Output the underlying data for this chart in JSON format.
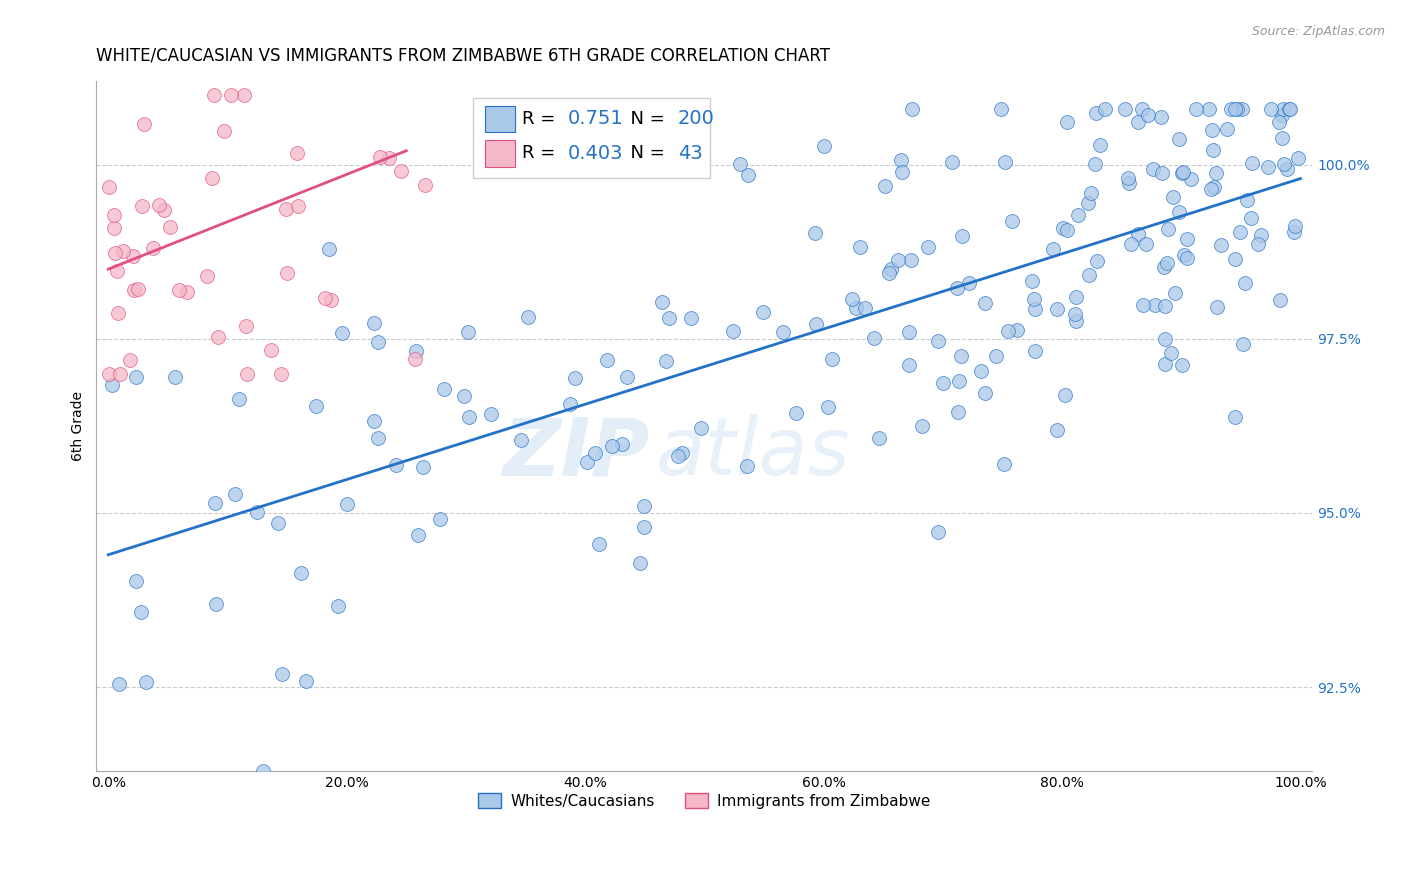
{
  "title": "WHITE/CAUCASIAN VS IMMIGRANTS FROM ZIMBABWE 6TH GRADE CORRELATION CHART",
  "source": "Source: ZipAtlas.com",
  "ylabel": "6th Grade",
  "y_ticks": [
    92.5,
    95.0,
    97.5,
    100.0
  ],
  "y_tick_labels": [
    "92.5%",
    "95.0%",
    "97.5%",
    "100.0%"
  ],
  "x_ticks": [
    0.0,
    20.0,
    40.0,
    60.0,
    80.0,
    100.0
  ],
  "x_tick_labels": [
    "0.0%",
    "20.0%",
    "40.0%",
    "60.0%",
    "80.0%",
    "100.0%"
  ],
  "xlim": [
    -1.0,
    101.0
  ],
  "ylim": [
    91.3,
    101.2
  ],
  "blue_R": 0.751,
  "blue_N": 200,
  "pink_R": 0.403,
  "pink_N": 43,
  "blue_color": "#aac8e8",
  "blue_line_color": "#2472c8",
  "pink_color": "#f4b8c8",
  "pink_line_color": "#e05080",
  "legend_label_blue": "Whites/Caucasians",
  "legend_label_pink": "Immigrants from Zimbabwe",
  "watermark_zip": "ZIP",
  "watermark_atlas": "atlas",
  "title_fontsize": 12,
  "axis_label_fontsize": 10,
  "tick_fontsize": 10,
  "blue_seed": 42,
  "pink_seed": 7,
  "blue_line_x0": 0.0,
  "blue_line_y0": 94.4,
  "blue_line_x1": 100.0,
  "blue_line_y1": 99.8,
  "pink_line_x0": 0.0,
  "pink_line_y0": 98.5,
  "pink_line_x1": 25.0,
  "pink_line_y1": 100.2
}
